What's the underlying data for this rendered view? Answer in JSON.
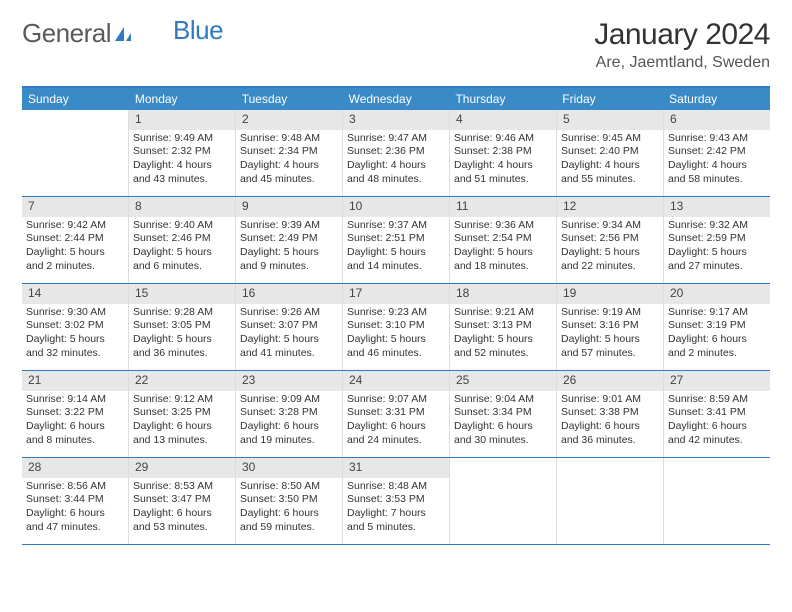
{
  "logo": {
    "word1": "General",
    "word2": "Blue"
  },
  "title": {
    "month": "January 2024",
    "location": "Are, Jaemtland, Sweden"
  },
  "colors": {
    "header_bg": "#3a8ac8",
    "header_text": "#ffffff",
    "border": "#2f7ac0",
    "daynum_bg": "#e7e7e7",
    "text": "#333333"
  },
  "day_headers": [
    "Sunday",
    "Monday",
    "Tuesday",
    "Wednesday",
    "Thursday",
    "Friday",
    "Saturday"
  ],
  "weeks": [
    [
      {
        "empty": true
      },
      {
        "n": "1",
        "sunrise": "Sunrise: 9:49 AM",
        "sunset": "Sunset: 2:32 PM",
        "day1": "Daylight: 4 hours",
        "day2": "and 43 minutes."
      },
      {
        "n": "2",
        "sunrise": "Sunrise: 9:48 AM",
        "sunset": "Sunset: 2:34 PM",
        "day1": "Daylight: 4 hours",
        "day2": "and 45 minutes."
      },
      {
        "n": "3",
        "sunrise": "Sunrise: 9:47 AM",
        "sunset": "Sunset: 2:36 PM",
        "day1": "Daylight: 4 hours",
        "day2": "and 48 minutes."
      },
      {
        "n": "4",
        "sunrise": "Sunrise: 9:46 AM",
        "sunset": "Sunset: 2:38 PM",
        "day1": "Daylight: 4 hours",
        "day2": "and 51 minutes."
      },
      {
        "n": "5",
        "sunrise": "Sunrise: 9:45 AM",
        "sunset": "Sunset: 2:40 PM",
        "day1": "Daylight: 4 hours",
        "day2": "and 55 minutes."
      },
      {
        "n": "6",
        "sunrise": "Sunrise: 9:43 AM",
        "sunset": "Sunset: 2:42 PM",
        "day1": "Daylight: 4 hours",
        "day2": "and 58 minutes."
      }
    ],
    [
      {
        "n": "7",
        "sunrise": "Sunrise: 9:42 AM",
        "sunset": "Sunset: 2:44 PM",
        "day1": "Daylight: 5 hours",
        "day2": "and 2 minutes."
      },
      {
        "n": "8",
        "sunrise": "Sunrise: 9:40 AM",
        "sunset": "Sunset: 2:46 PM",
        "day1": "Daylight: 5 hours",
        "day2": "and 6 minutes."
      },
      {
        "n": "9",
        "sunrise": "Sunrise: 9:39 AM",
        "sunset": "Sunset: 2:49 PM",
        "day1": "Daylight: 5 hours",
        "day2": "and 9 minutes."
      },
      {
        "n": "10",
        "sunrise": "Sunrise: 9:37 AM",
        "sunset": "Sunset: 2:51 PM",
        "day1": "Daylight: 5 hours",
        "day2": "and 14 minutes."
      },
      {
        "n": "11",
        "sunrise": "Sunrise: 9:36 AM",
        "sunset": "Sunset: 2:54 PM",
        "day1": "Daylight: 5 hours",
        "day2": "and 18 minutes."
      },
      {
        "n": "12",
        "sunrise": "Sunrise: 9:34 AM",
        "sunset": "Sunset: 2:56 PM",
        "day1": "Daylight: 5 hours",
        "day2": "and 22 minutes."
      },
      {
        "n": "13",
        "sunrise": "Sunrise: 9:32 AM",
        "sunset": "Sunset: 2:59 PM",
        "day1": "Daylight: 5 hours",
        "day2": "and 27 minutes."
      }
    ],
    [
      {
        "n": "14",
        "sunrise": "Sunrise: 9:30 AM",
        "sunset": "Sunset: 3:02 PM",
        "day1": "Daylight: 5 hours",
        "day2": "and 32 minutes."
      },
      {
        "n": "15",
        "sunrise": "Sunrise: 9:28 AM",
        "sunset": "Sunset: 3:05 PM",
        "day1": "Daylight: 5 hours",
        "day2": "and 36 minutes."
      },
      {
        "n": "16",
        "sunrise": "Sunrise: 9:26 AM",
        "sunset": "Sunset: 3:07 PM",
        "day1": "Daylight: 5 hours",
        "day2": "and 41 minutes."
      },
      {
        "n": "17",
        "sunrise": "Sunrise: 9:23 AM",
        "sunset": "Sunset: 3:10 PM",
        "day1": "Daylight: 5 hours",
        "day2": "and 46 minutes."
      },
      {
        "n": "18",
        "sunrise": "Sunrise: 9:21 AM",
        "sunset": "Sunset: 3:13 PM",
        "day1": "Daylight: 5 hours",
        "day2": "and 52 minutes."
      },
      {
        "n": "19",
        "sunrise": "Sunrise: 9:19 AM",
        "sunset": "Sunset: 3:16 PM",
        "day1": "Daylight: 5 hours",
        "day2": "and 57 minutes."
      },
      {
        "n": "20",
        "sunrise": "Sunrise: 9:17 AM",
        "sunset": "Sunset: 3:19 PM",
        "day1": "Daylight: 6 hours",
        "day2": "and 2 minutes."
      }
    ],
    [
      {
        "n": "21",
        "sunrise": "Sunrise: 9:14 AM",
        "sunset": "Sunset: 3:22 PM",
        "day1": "Daylight: 6 hours",
        "day2": "and 8 minutes."
      },
      {
        "n": "22",
        "sunrise": "Sunrise: 9:12 AM",
        "sunset": "Sunset: 3:25 PM",
        "day1": "Daylight: 6 hours",
        "day2": "and 13 minutes."
      },
      {
        "n": "23",
        "sunrise": "Sunrise: 9:09 AM",
        "sunset": "Sunset: 3:28 PM",
        "day1": "Daylight: 6 hours",
        "day2": "and 19 minutes."
      },
      {
        "n": "24",
        "sunrise": "Sunrise: 9:07 AM",
        "sunset": "Sunset: 3:31 PM",
        "day1": "Daylight: 6 hours",
        "day2": "and 24 minutes."
      },
      {
        "n": "25",
        "sunrise": "Sunrise: 9:04 AM",
        "sunset": "Sunset: 3:34 PM",
        "day1": "Daylight: 6 hours",
        "day2": "and 30 minutes."
      },
      {
        "n": "26",
        "sunrise": "Sunrise: 9:01 AM",
        "sunset": "Sunset: 3:38 PM",
        "day1": "Daylight: 6 hours",
        "day2": "and 36 minutes."
      },
      {
        "n": "27",
        "sunrise": "Sunrise: 8:59 AM",
        "sunset": "Sunset: 3:41 PM",
        "day1": "Daylight: 6 hours",
        "day2": "and 42 minutes."
      }
    ],
    [
      {
        "n": "28",
        "sunrise": "Sunrise: 8:56 AM",
        "sunset": "Sunset: 3:44 PM",
        "day1": "Daylight: 6 hours",
        "day2": "and 47 minutes."
      },
      {
        "n": "29",
        "sunrise": "Sunrise: 8:53 AM",
        "sunset": "Sunset: 3:47 PM",
        "day1": "Daylight: 6 hours",
        "day2": "and 53 minutes."
      },
      {
        "n": "30",
        "sunrise": "Sunrise: 8:50 AM",
        "sunset": "Sunset: 3:50 PM",
        "day1": "Daylight: 6 hours",
        "day2": "and 59 minutes."
      },
      {
        "n": "31",
        "sunrise": "Sunrise: 8:48 AM",
        "sunset": "Sunset: 3:53 PM",
        "day1": "Daylight: 7 hours",
        "day2": "and 5 minutes."
      },
      {
        "empty": true
      },
      {
        "empty": true
      },
      {
        "empty": true
      }
    ]
  ]
}
